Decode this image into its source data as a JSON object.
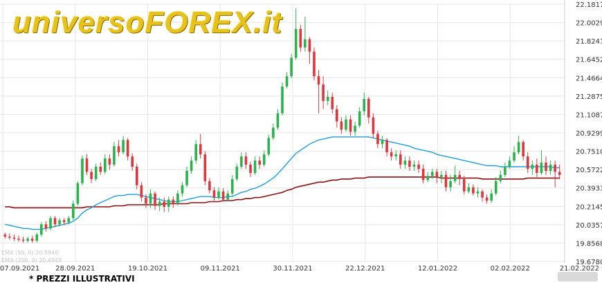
{
  "watermark": "universoFOREX.it",
  "footnote": "* PREZZI ILLUSTRATIVI",
  "legend": [
    "EMA (50, 0) 20.5940",
    "EMA (200, 0) 20.4948"
  ],
  "colors": {
    "up": "#2bb24c",
    "down": "#d9383f",
    "ema_fast": "#1e9de0",
    "ema_slow": "#8b0f12",
    "grid": "#e6e6e6",
    "watermark": "#e8c21c"
  },
  "chart_data": {
    "type": "candlestick",
    "title": "",
    "xlabel": "",
    "ylabel": "",
    "ylim": [
      19.678,
      22.1817
    ],
    "y_ticks": [
      "22.1817",
      "22.0029",
      "21.8241",
      "21.6452",
      "21.4664",
      "21.2875",
      "21.1087",
      "20.9299",
      "20.7510",
      "20.5722",
      "20.3933",
      "20.2145",
      "20.0357",
      "19.8568",
      "19.6780"
    ],
    "x_ticks": [
      "07.09.2021",
      "28.09.2021",
      "19.10.2021",
      "09.11.2021",
      "30.11.2021",
      "22.12.2021",
      "12.01.2022",
      "02.02.2022",
      "21.02.2022"
    ],
    "candles": [
      [
        19.94,
        19.92,
        19.96,
        19.9
      ],
      [
        19.92,
        19.91,
        19.95,
        19.89
      ],
      [
        19.91,
        19.9,
        19.94,
        19.88
      ],
      [
        19.9,
        19.89,
        19.93,
        19.87
      ],
      [
        19.89,
        19.88,
        19.92,
        19.86
      ],
      [
        19.88,
        19.9,
        19.92,
        19.86
      ],
      [
        19.9,
        19.88,
        19.93,
        19.86
      ],
      [
        19.88,
        19.94,
        19.96,
        19.86
      ],
      [
        19.94,
        20.04,
        20.06,
        19.92
      ],
      [
        20.04,
        20.0,
        20.07,
        19.97
      ],
      [
        20.0,
        20.1,
        20.12,
        19.98
      ],
      [
        20.1,
        20.04,
        20.12,
        20.01
      ],
      [
        20.04,
        20.08,
        20.1,
        20.02
      ],
      [
        20.08,
        20.06,
        20.1,
        20.03
      ],
      [
        20.06,
        20.1,
        20.12,
        20.04
      ],
      [
        20.1,
        20.24,
        20.27,
        20.08
      ],
      [
        20.24,
        20.44,
        20.46,
        20.22
      ],
      [
        20.44,
        20.68,
        20.71,
        20.42
      ],
      [
        20.68,
        20.55,
        20.72,
        20.52
      ],
      [
        20.55,
        20.48,
        20.58,
        20.44
      ],
      [
        20.48,
        20.6,
        20.63,
        20.46
      ],
      [
        20.6,
        20.55,
        20.64,
        20.52
      ],
      [
        20.55,
        20.68,
        20.72,
        20.53
      ],
      [
        20.68,
        20.62,
        20.72,
        20.57
      ],
      [
        20.62,
        20.8,
        20.84,
        20.6
      ],
      [
        20.8,
        20.74,
        20.86,
        20.7
      ],
      [
        20.74,
        20.86,
        20.9,
        20.72
      ],
      [
        20.86,
        20.7,
        20.88,
        20.66
      ],
      [
        20.7,
        20.6,
        20.73,
        20.56
      ],
      [
        20.6,
        20.42,
        20.63,
        20.38
      ],
      [
        20.42,
        20.3,
        20.45,
        20.26
      ],
      [
        20.3,
        20.24,
        20.33,
        20.2
      ],
      [
        20.24,
        20.34,
        20.38,
        20.2
      ],
      [
        20.34,
        20.22,
        20.36,
        20.18
      ],
      [
        20.22,
        20.26,
        20.3,
        20.17
      ],
      [
        20.26,
        20.21,
        20.3,
        20.16
      ],
      [
        20.21,
        20.28,
        20.31,
        20.16
      ],
      [
        20.28,
        20.24,
        20.31,
        20.2
      ],
      [
        20.24,
        20.34,
        20.37,
        20.22
      ],
      [
        20.34,
        20.42,
        20.45,
        20.31
      ],
      [
        20.42,
        20.56,
        20.6,
        20.4
      ],
      [
        20.56,
        20.66,
        20.7,
        20.53
      ],
      [
        20.66,
        20.82,
        20.86,
        20.63
      ],
      [
        20.82,
        20.72,
        20.92,
        20.68
      ],
      [
        20.72,
        20.46,
        20.75,
        20.42
      ],
      [
        20.46,
        20.37,
        20.49,
        20.34
      ],
      [
        20.37,
        20.3,
        20.4,
        20.27
      ],
      [
        20.3,
        20.36,
        20.4,
        20.28
      ],
      [
        20.36,
        20.28,
        20.39,
        20.26
      ],
      [
        20.28,
        20.34,
        20.37,
        20.26
      ],
      [
        20.34,
        20.48,
        20.52,
        20.32
      ],
      [
        20.48,
        20.6,
        20.63,
        20.46
      ],
      [
        20.6,
        20.7,
        20.74,
        20.58
      ],
      [
        20.7,
        20.62,
        20.74,
        20.58
      ],
      [
        20.62,
        20.54,
        20.65,
        20.5
      ],
      [
        20.54,
        20.66,
        20.7,
        20.52
      ],
      [
        20.66,
        20.62,
        20.7,
        20.58
      ],
      [
        20.62,
        20.72,
        20.76,
        20.6
      ],
      [
        20.72,
        20.88,
        20.91,
        20.7
      ],
      [
        20.88,
        20.98,
        21.02,
        20.86
      ],
      [
        20.98,
        21.12,
        21.16,
        20.96
      ],
      [
        21.12,
        21.38,
        21.42,
        21.1
      ],
      [
        21.38,
        21.48,
        21.52,
        21.36
      ],
      [
        21.48,
        21.66,
        21.7,
        21.46
      ],
      [
        21.66,
        21.94,
        22.14,
        21.64
      ],
      [
        21.94,
        21.76,
        21.98,
        21.72
      ],
      [
        21.76,
        21.84,
        22.06,
        21.72
      ],
      [
        21.84,
        21.72,
        21.86,
        21.6
      ],
      [
        21.72,
        21.48,
        21.76,
        21.44
      ],
      [
        21.48,
        21.4,
        21.54,
        21.12
      ],
      [
        21.4,
        21.24,
        21.48,
        21.16
      ],
      [
        21.24,
        21.28,
        21.34,
        21.2
      ],
      [
        21.28,
        21.16,
        21.32,
        21.12
      ],
      [
        21.16,
        21.04,
        21.2,
        20.98
      ],
      [
        21.04,
        20.96,
        21.08,
        20.92
      ],
      [
        20.96,
        21.06,
        21.1,
        20.94
      ],
      [
        21.06,
        20.94,
        21.1,
        20.9
      ],
      [
        20.94,
        21.0,
        21.04,
        20.9
      ],
      [
        21.0,
        21.14,
        21.18,
        20.98
      ],
      [
        21.14,
        21.26,
        21.32,
        21.1
      ],
      [
        21.26,
        21.08,
        21.28,
        21.02
      ],
      [
        21.08,
        20.92,
        21.12,
        20.88
      ],
      [
        20.92,
        20.82,
        20.95,
        20.78
      ],
      [
        20.82,
        20.86,
        20.9,
        20.78
      ],
      [
        20.86,
        20.74,
        20.88,
        20.7
      ],
      [
        20.74,
        20.7,
        20.78,
        20.66
      ],
      [
        20.7,
        20.72,
        20.76,
        20.66
      ],
      [
        20.72,
        20.62,
        20.76,
        20.58
      ],
      [
        20.62,
        20.66,
        20.7,
        20.58
      ],
      [
        20.66,
        20.6,
        20.7,
        20.56
      ],
      [
        20.6,
        20.62,
        20.66,
        20.56
      ],
      [
        20.62,
        20.58,
        20.66,
        20.54
      ],
      [
        20.58,
        20.47,
        20.62,
        20.44
      ],
      [
        20.47,
        20.51,
        20.55,
        20.45
      ],
      [
        20.51,
        20.55,
        20.58,
        20.48
      ],
      [
        20.55,
        20.5,
        20.58,
        20.44
      ],
      [
        20.5,
        20.52,
        20.56,
        20.44
      ],
      [
        20.52,
        20.4,
        20.56,
        20.36
      ],
      [
        20.4,
        20.46,
        20.52,
        20.36
      ],
      [
        20.46,
        20.52,
        20.61,
        20.44
      ],
      [
        20.52,
        20.48,
        20.56,
        20.42
      ],
      [
        20.48,
        20.36,
        20.51,
        20.33
      ],
      [
        20.36,
        20.4,
        20.44,
        20.34
      ],
      [
        20.4,
        20.34,
        20.43,
        20.32
      ],
      [
        20.34,
        20.36,
        20.4,
        20.3
      ],
      [
        20.36,
        20.3,
        20.38,
        20.26
      ],
      [
        20.3,
        20.27,
        20.33,
        20.24
      ],
      [
        20.27,
        20.34,
        20.38,
        20.25
      ],
      [
        20.34,
        20.46,
        20.5,
        20.32
      ],
      [
        20.46,
        20.52,
        20.56,
        20.44
      ],
      [
        20.52,
        20.6,
        20.64,
        20.5
      ],
      [
        20.6,
        20.66,
        20.7,
        20.58
      ],
      [
        20.66,
        20.74,
        20.8,
        20.64
      ],
      [
        20.74,
        20.84,
        20.9,
        20.72
      ],
      [
        20.84,
        20.7,
        20.86,
        20.66
      ],
      [
        20.7,
        20.58,
        20.74,
        20.54
      ],
      [
        20.58,
        20.62,
        20.66,
        20.52
      ],
      [
        20.62,
        20.54,
        20.68,
        20.5
      ],
      [
        20.54,
        20.64,
        20.76,
        20.52
      ],
      [
        20.64,
        20.56,
        20.7,
        20.52
      ],
      [
        20.56,
        20.62,
        20.66,
        20.52
      ],
      [
        20.62,
        20.55,
        20.66,
        20.4
      ],
      [
        20.55,
        20.52,
        20.62,
        20.48
      ]
    ],
    "ema50": [
      20.04,
      20.03,
      20.02,
      20.01,
      20.0,
      20.0,
      19.99,
      19.99,
      19.99,
      20.0,
      20.01,
      20.02,
      20.03,
      20.04,
      20.05,
      20.07,
      20.1,
      20.15,
      20.18,
      20.2,
      20.23,
      20.25,
      20.27,
      20.29,
      20.31,
      20.32,
      20.32,
      20.33,
      20.33,
      20.33,
      20.32,
      20.31,
      20.3,
      20.29,
      20.28,
      20.27,
      20.26,
      20.26,
      20.26,
      20.27,
      20.28,
      20.29,
      20.3,
      20.31,
      20.31,
      20.31,
      20.3,
      20.3,
      20.3,
      20.31,
      20.31,
      20.33,
      20.35,
      20.36,
      20.38,
      20.39,
      20.41,
      20.43,
      20.46,
      20.49,
      20.53,
      20.58,
      20.63,
      20.68,
      20.73,
      20.76,
      20.79,
      20.82,
      20.84,
      20.86,
      20.87,
      20.88,
      20.89,
      20.89,
      20.89,
      20.89,
      20.89,
      20.89,
      20.89,
      20.89,
      20.89,
      20.88,
      20.87,
      20.86,
      20.85,
      20.84,
      20.83,
      20.82,
      20.81,
      20.8,
      20.78,
      20.77,
      20.76,
      20.75,
      20.74,
      20.72,
      20.71,
      20.7,
      20.69,
      20.68,
      20.67,
      20.66,
      20.65,
      20.64,
      20.63,
      20.62,
      20.61,
      20.61,
      20.61,
      20.6,
      20.6,
      20.6,
      20.6,
      20.6,
      20.6,
      20.6,
      20.6,
      20.6,
      20.6,
      20.6,
      20.6,
      20.59,
      20.59
    ],
    "ema200": [
      20.21,
      20.21,
      20.2,
      20.2,
      20.2,
      20.2,
      20.2,
      20.2,
      20.2,
      20.2,
      20.2,
      20.2,
      20.2,
      20.2,
      20.2,
      20.2,
      20.2,
      20.2,
      20.21,
      20.21,
      20.21,
      20.21,
      20.21,
      20.21,
      20.22,
      20.22,
      20.22,
      20.23,
      20.23,
      20.23,
      20.23,
      20.23,
      20.23,
      20.23,
      20.23,
      20.24,
      20.24,
      20.24,
      20.24,
      20.24,
      20.24,
      20.25,
      20.25,
      20.25,
      20.25,
      20.26,
      20.26,
      20.26,
      20.27,
      20.27,
      20.27,
      20.28,
      20.28,
      20.29,
      20.29,
      20.3,
      20.3,
      20.31,
      20.32,
      20.33,
      20.34,
      20.35,
      20.37,
      20.38,
      20.4,
      20.41,
      20.42,
      20.43,
      20.44,
      20.45,
      20.45,
      20.46,
      20.47,
      20.47,
      20.48,
      20.48,
      20.48,
      20.49,
      20.49,
      20.49,
      20.5,
      20.5,
      20.5,
      20.5,
      20.5,
      20.5,
      20.5,
      20.5,
      20.5,
      20.5,
      20.5,
      20.5,
      20.5,
      20.5,
      20.5,
      20.5,
      20.49,
      20.49,
      20.49,
      20.49,
      20.49,
      20.49,
      20.49,
      20.49,
      20.49,
      20.48,
      20.48,
      20.48,
      20.48,
      20.48,
      20.48,
      20.48,
      20.48,
      20.48,
      20.48,
      20.49,
      20.49,
      20.49,
      20.49,
      20.49,
      20.49,
      20.49,
      20.49
    ]
  }
}
